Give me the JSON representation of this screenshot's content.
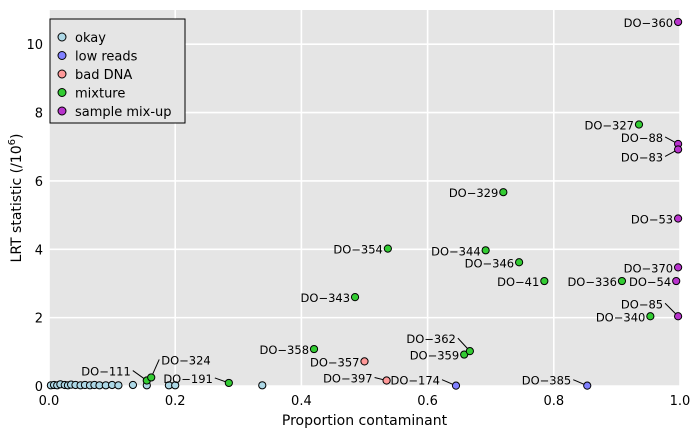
{
  "chart_data": {
    "type": "scatter",
    "xlabel": "Proportion contaminant",
    "ylabel": "LRT statistic (/10",
    "ylabel_sup": "6",
    "ylabel_close": ")",
    "xlim": [
      0,
      1
    ],
    "ylim": [
      0,
      11
    ],
    "x_ticks": [
      0,
      0.2,
      0.4,
      0.6,
      0.8,
      1
    ],
    "x_tick_labels": [
      "0.0",
      "0.2",
      "0.4",
      "0.6",
      "0.8",
      "1.0"
    ],
    "y_ticks": [
      0,
      2,
      4,
      6,
      8,
      10
    ],
    "y_tick_labels": [
      "0",
      "2",
      "4",
      "6",
      "8",
      "10"
    ],
    "grid": true,
    "legend_position": "top-left",
    "colors": {
      "background": "#e5e5e5",
      "grid": "#ffffff",
      "okay": "#add8e6",
      "low reads": "#8080ff",
      "bad DNA": "#ff9999",
      "mixture": "#33cc33",
      "sample mix-up": "#b833cc"
    },
    "categories": [
      "okay",
      "low reads",
      "bad DNA",
      "mixture",
      "sample mix-up"
    ],
    "series": [
      {
        "name": "okay",
        "points": [
          {
            "x": 0.003,
            "y": 0.02
          },
          {
            "x": 0.008,
            "y": 0.03
          },
          {
            "x": 0.013,
            "y": 0.02
          },
          {
            "x": 0.018,
            "y": 0.05
          },
          {
            "x": 0.025,
            "y": 0.03
          },
          {
            "x": 0.03,
            "y": 0.02
          },
          {
            "x": 0.035,
            "y": 0.04
          },
          {
            "x": 0.042,
            "y": 0.03
          },
          {
            "x": 0.05,
            "y": 0.02
          },
          {
            "x": 0.057,
            "y": 0.03
          },
          {
            "x": 0.065,
            "y": 0.02
          },
          {
            "x": 0.072,
            "y": 0.03
          },
          {
            "x": 0.08,
            "y": 0.02
          },
          {
            "x": 0.09,
            "y": 0.02
          },
          {
            "x": 0.1,
            "y": 0.03
          },
          {
            "x": 0.11,
            "y": 0.02
          },
          {
            "x": 0.133,
            "y": 0.03
          },
          {
            "x": 0.155,
            "y": 0.02
          },
          {
            "x": 0.19,
            "y": 0.02
          },
          {
            "x": 0.2,
            "y": 0.02
          },
          {
            "x": 0.338,
            "y": 0.02
          }
        ]
      },
      {
        "name": "low reads",
        "points": [
          {
            "x": 0.645,
            "y": 0.01,
            "label": "DO−174"
          },
          {
            "x": 0.853,
            "y": 0.01,
            "label": "DO−385"
          }
        ]
      },
      {
        "name": "bad DNA",
        "points": [
          {
            "x": 0.535,
            "y": 0.16,
            "label": "DO−397"
          },
          {
            "x": 0.5,
            "y": 0.72,
            "label": "DO−357"
          }
        ]
      },
      {
        "name": "mixture",
        "points": [
          {
            "x": 0.155,
            "y": 0.16,
            "label": "DO−111"
          },
          {
            "x": 0.162,
            "y": 0.25,
            "label": "DO−324"
          },
          {
            "x": 0.285,
            "y": 0.09,
            "label": "DO−191"
          },
          {
            "x": 0.42,
            "y": 1.08,
            "label": "DO−358"
          },
          {
            "x": 0.485,
            "y": 2.6,
            "label": "DO−343"
          },
          {
            "x": 0.537,
            "y": 4.02,
            "label": "DO−354"
          },
          {
            "x": 0.658,
            "y": 0.92,
            "label": "DO−359"
          },
          {
            "x": 0.667,
            "y": 1.02,
            "label": "DO−362"
          },
          {
            "x": 0.692,
            "y": 3.97,
            "label": "DO−344"
          },
          {
            "x": 0.72,
            "y": 5.67,
            "label": "DO−329"
          },
          {
            "x": 0.745,
            "y": 3.62,
            "label": "DO−346"
          },
          {
            "x": 0.785,
            "y": 3.07,
            "label": "DO−41"
          },
          {
            "x": 0.908,
            "y": 3.07,
            "label": "DO−336"
          },
          {
            "x": 0.935,
            "y": 7.65,
            "label": "DO−327"
          },
          {
            "x": 0.953,
            "y": 2.04,
            "label": "DO−340"
          }
        ]
      },
      {
        "name": "sample mix-up",
        "points": [
          {
            "x": 0.997,
            "y": 10.65,
            "label": "DO−360"
          },
          {
            "x": 0.997,
            "y": 7.08,
            "label": "DO−88"
          },
          {
            "x": 0.997,
            "y": 6.92,
            "label": "DO−83"
          },
          {
            "x": 0.997,
            "y": 4.9,
            "label": "DO−53"
          },
          {
            "x": 0.997,
            "y": 3.47,
            "label": "DO−370"
          },
          {
            "x": 0.994,
            "y": 3.07,
            "label": "DO−54"
          },
          {
            "x": 0.997,
            "y": 2.04,
            "label": "DO−85"
          }
        ]
      }
    ]
  }
}
